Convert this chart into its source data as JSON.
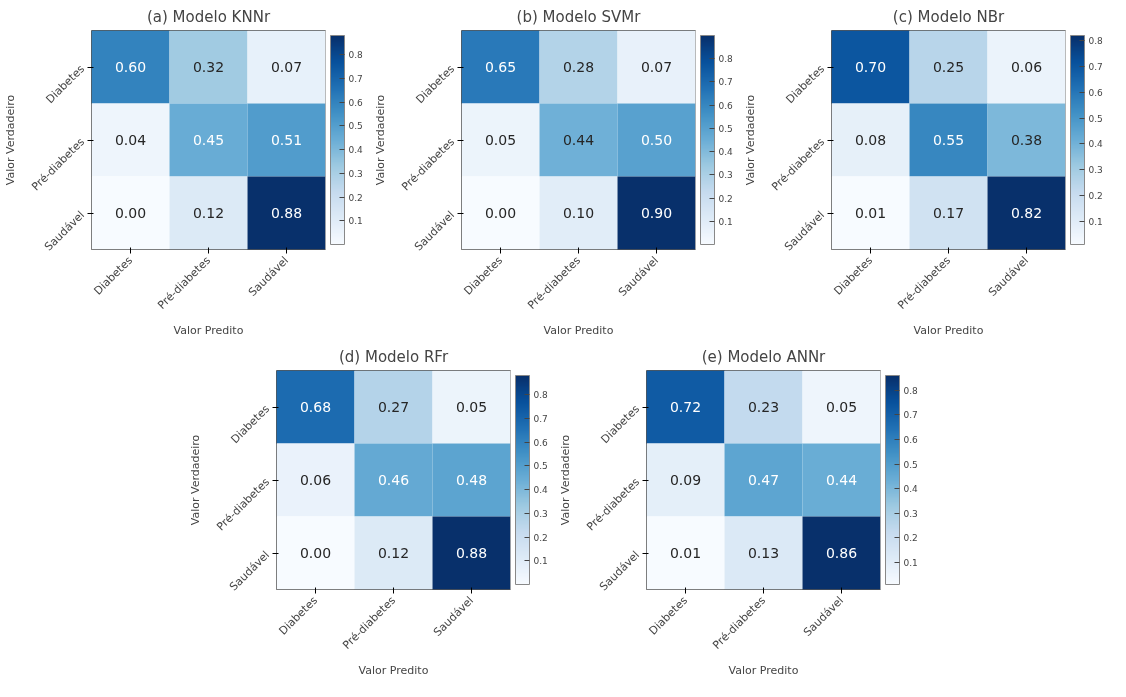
{
  "chart_data": [
    {
      "type": "heatmap",
      "title": "(a) Modelo KNNr",
      "xlabel": "Valor Predito",
      "ylabel": "Valor Verdadeiro",
      "categories": [
        "Diabetes",
        "Pré-diabetes",
        "Saudável"
      ],
      "y_categories": [
        "Diabetes",
        "Pré-diabetes",
        "Saudável"
      ],
      "cells": [
        [
          0.6,
          0.32,
          0.07
        ],
        [
          0.04,
          0.45,
          0.51
        ],
        [
          0.0,
          0.12,
          0.88
        ]
      ],
      "cell_labels": [
        [
          "0.60",
          "0.32",
          "0.07"
        ],
        [
          "0.04",
          "0.45",
          "0.51"
        ],
        [
          "0.00",
          "0.12",
          "0.88"
        ]
      ],
      "clim": [
        0.0,
        0.88
      ],
      "cticks": [
        0.1,
        0.2,
        0.3,
        0.4,
        0.5,
        0.6,
        0.7,
        0.8
      ]
    },
    {
      "type": "heatmap",
      "title": "(b) Modelo SVMr",
      "xlabel": "Valor Predito",
      "ylabel": "Valor Verdadeiro",
      "categories": [
        "Diabetes",
        "Pré-diabetes",
        "Saudável"
      ],
      "y_categories": [
        "Diabetes",
        "Pré-diabetes",
        "Saudável"
      ],
      "cells": [
        [
          0.65,
          0.28,
          0.07
        ],
        [
          0.05,
          0.44,
          0.5
        ],
        [
          0.0,
          0.1,
          0.9
        ]
      ],
      "cell_labels": [
        [
          "0.65",
          "0.28",
          "0.07"
        ],
        [
          "0.05",
          "0.44",
          "0.50"
        ],
        [
          "0.00",
          "0.10",
          "0.90"
        ]
      ],
      "clim": [
        0.0,
        0.9
      ],
      "cticks": [
        0.1,
        0.2,
        0.3,
        0.4,
        0.5,
        0.6,
        0.7,
        0.8
      ]
    },
    {
      "type": "heatmap",
      "title": "(c) Modelo NBr",
      "xlabel": "Valor Predito",
      "ylabel": "Valor Verdadeiro",
      "categories": [
        "Diabetes",
        "Pré-diabetes",
        "Saudável"
      ],
      "y_categories": [
        "Diabetes",
        "Pré-diabetes",
        "Saudável"
      ],
      "cells": [
        [
          0.7,
          0.25,
          0.06
        ],
        [
          0.08,
          0.55,
          0.38
        ],
        [
          0.01,
          0.17,
          0.82
        ]
      ],
      "cell_labels": [
        [
          "0.70",
          "0.25",
          "0.06"
        ],
        [
          "0.08",
          "0.55",
          "0.38"
        ],
        [
          "0.01",
          "0.17",
          "0.82"
        ]
      ],
      "clim": [
        0.01,
        0.82
      ],
      "cticks": [
        0.1,
        0.2,
        0.3,
        0.4,
        0.5,
        0.6,
        0.7,
        0.8
      ]
    },
    {
      "type": "heatmap",
      "title": "(d) Modelo RFr",
      "xlabel": "Valor Predito",
      "ylabel": "Valor Verdadeiro",
      "categories": [
        "Diabetes",
        "Pré-diabetes",
        "Saudável"
      ],
      "y_categories": [
        "Diabetes",
        "Pré-diabetes",
        "Saudável"
      ],
      "cells": [
        [
          0.68,
          0.27,
          0.05
        ],
        [
          0.06,
          0.46,
          0.48
        ],
        [
          0.0,
          0.12,
          0.88
        ]
      ],
      "cell_labels": [
        [
          "0.68",
          "0.27",
          "0.05"
        ],
        [
          "0.06",
          "0.46",
          "0.48"
        ],
        [
          "0.00",
          "0.12",
          "0.88"
        ]
      ],
      "clim": [
        0.0,
        0.88
      ],
      "cticks": [
        0.1,
        0.2,
        0.3,
        0.4,
        0.5,
        0.6,
        0.7,
        0.8
      ]
    },
    {
      "type": "heatmap",
      "title": "(e) Modelo ANNr",
      "xlabel": "Valor Predito",
      "ylabel": "Valor Verdadeiro",
      "categories": [
        "Diabetes",
        "Pré-diabetes",
        "Saudável"
      ],
      "y_categories": [
        "Diabetes",
        "Pré-diabetes",
        "Saudável"
      ],
      "cells": [
        [
          0.72,
          0.23,
          0.05
        ],
        [
          0.09,
          0.47,
          0.44
        ],
        [
          0.01,
          0.13,
          0.86
        ]
      ],
      "cell_labels": [
        [
          "0.72",
          "0.23",
          "0.05"
        ],
        [
          "0.09",
          "0.47",
          "0.44"
        ],
        [
          "0.01",
          "0.13",
          "0.86"
        ]
      ],
      "clim": [
        0.01,
        0.86
      ],
      "cticks": [
        0.1,
        0.2,
        0.3,
        0.4,
        0.5,
        0.6,
        0.7,
        0.8
      ]
    }
  ]
}
